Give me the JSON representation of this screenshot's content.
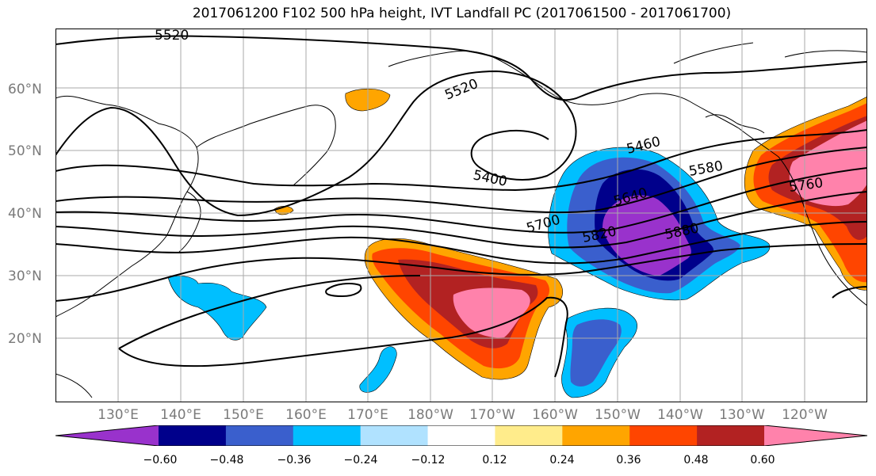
{
  "title": "2017061200 F102 500 hPa height, IVT Landfall PC (2017061500 - 2017061700)",
  "lat_labels": [
    "60°N",
    "50°N",
    "40°N",
    "30°N",
    "20°N"
  ],
  "lon_labels": [
    "130°E",
    "140°E",
    "150°E",
    "160°E",
    "170°E",
    "180°W",
    "170°W",
    "160°W",
    "150°W",
    "140°W",
    "130°W",
    "120°W"
  ],
  "contour_labels": [
    "5520",
    "5520",
    "5400",
    "5460",
    "5580",
    "5640",
    "5700",
    "5760",
    "5820",
    "5880"
  ],
  "colorbar": {
    "ticks": [
      "−0.60",
      "−0.48",
      "−0.36",
      "−0.24",
      "−0.12",
      "0.12",
      "0.24",
      "0.36",
      "0.48",
      "0.60"
    ],
    "colors": [
      "#9932cc",
      "#00008b",
      "#3a5fcd",
      "#00bfff",
      "#b0e2ff",
      "#ffffff",
      "#ffec8b",
      "#ffa500",
      "#ff4500",
      "#b22222",
      "#ff82ab"
    ]
  }
}
